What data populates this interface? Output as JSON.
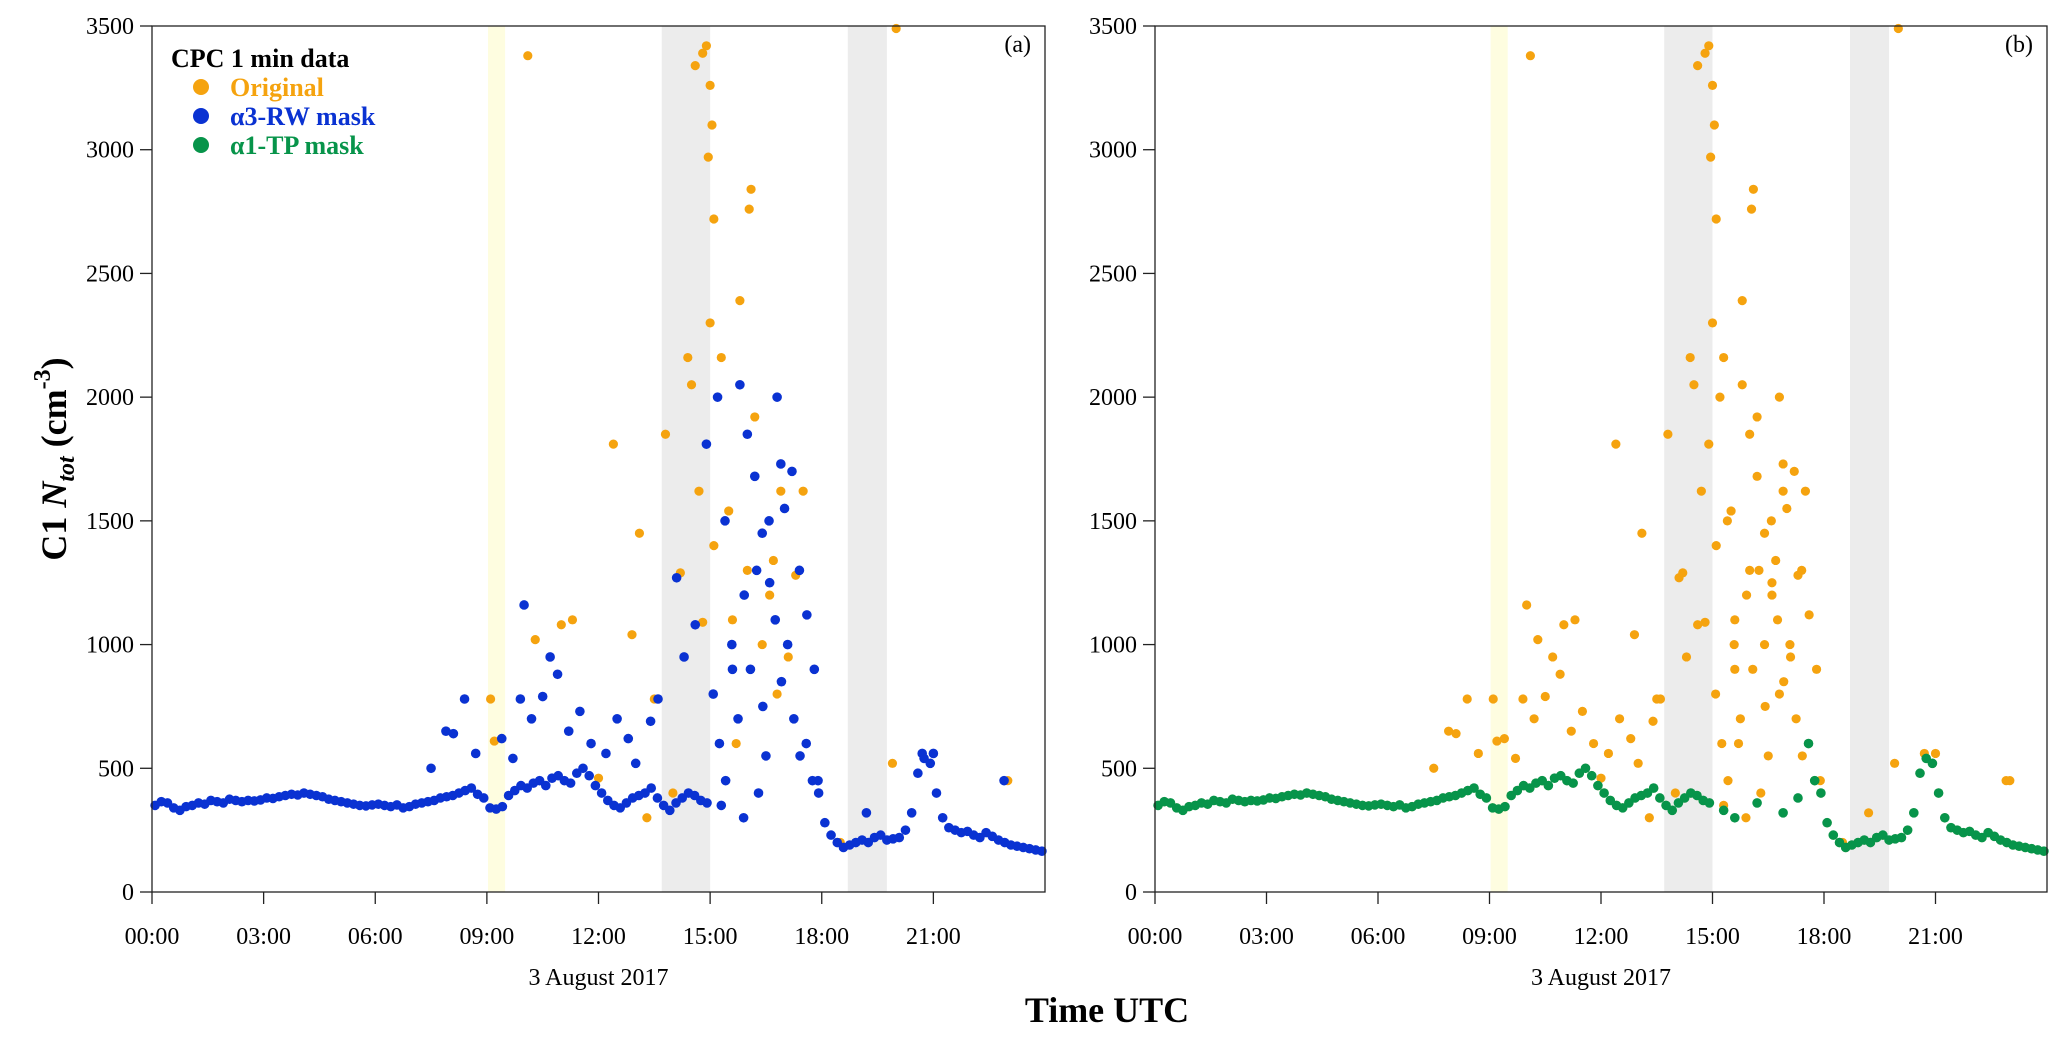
{
  "chart_data": {
    "type": "scatter",
    "xlabel": "Time UTC",
    "ylabel_prefix": "C1 ",
    "ylabel_var": "N",
    "ylabel_sub": "tot",
    "ylabel_unit": " (cm",
    "ylabel_exp": "-3",
    "ylabel_close": ")",
    "date_label": "3 August 2017",
    "ylim": [
      0,
      3500
    ],
    "yticks": [
      0,
      500,
      1000,
      1500,
      2000,
      2500,
      3000,
      3500
    ],
    "xlim_hours": [
      0,
      24
    ],
    "xticks_hours": [
      0,
      3,
      6,
      9,
      12,
      15,
      18,
      21
    ],
    "xtick_labels": [
      "00:00",
      "03:00",
      "06:00",
      "09:00",
      "12:00",
      "15:00",
      "18:00",
      "21:00"
    ],
    "legend": {
      "title": "CPC 1 min data",
      "entries": [
        {
          "label": "Original",
          "color": "#f5a30f"
        },
        {
          "label": "α3-RW mask",
          "color": "#0a32d2"
        },
        {
          "label": "α1-TP mask",
          "color": "#07944a"
        }
      ]
    },
    "panels": [
      {
        "label": "(a)",
        "series": [
          "Original",
          "α3-RW mask"
        ]
      },
      {
        "label": "(b)",
        "series": [
          "Original",
          "α1-TP mask"
        ]
      }
    ],
    "shaded_intervals_hours": [
      {
        "start": 9.03,
        "end": 9.49,
        "color": "#fefde0"
      },
      {
        "start": 13.7,
        "end": 15.0,
        "color": "#ececec"
      },
      {
        "start": 18.7,
        "end": 19.75,
        "color": "#ececec"
      }
    ],
    "baseline_step_minutes": 10,
    "baseline_values": [
      350,
      365,
      360,
      340,
      330,
      345,
      350,
      360,
      355,
      370,
      365,
      360,
      375,
      370,
      365,
      370,
      368,
      372,
      380,
      378,
      385,
      390,
      395,
      392,
      400,
      395,
      390,
      385,
      375,
      370,
      365,
      360,
      355,
      350,
      348,
      352,
      355,
      350,
      345,
      352,
      340,
      345,
      355,
      360,
      365,
      370,
      380,
      385,
      390,
      400,
      410,
      420,
      395,
      380,
      340,
      335,
      345,
      390,
      410,
      430,
      420,
      440,
      450,
      430,
      460,
      470,
      450,
      440,
      480,
      500,
      470,
      430,
      400,
      370,
      350,
      340,
      360,
      380,
      390,
      400,
      420,
      380,
      350,
      330,
      360,
      380,
      400,
      390,
      370,
      360,
      800,
      600,
      450,
      1000,
      700,
      1200,
      900,
      1300,
      750,
      1500,
      1100,
      850,
      1000,
      700,
      550,
      600,
      450,
      400,
      280,
      230,
      200,
      180,
      190,
      200,
      210,
      200,
      220,
      230,
      210,
      215,
      220,
      250,
      320,
      480,
      540,
      520,
      400,
      300,
      260,
      250,
      240,
      245,
      230,
      220,
      240,
      225,
      210,
      200,
      190,
      185,
      180,
      175,
      170,
      165
    ],
    "tp_mask_excluded_hours": [
      15.0,
      17.5
    ],
    "tp_mask_extra_points": [
      [
        15.3,
        330
      ],
      [
        15.6,
        300
      ],
      [
        16.2,
        360
      ],
      [
        16.9,
        320
      ],
      [
        17.3,
        380
      ]
    ],
    "rw_mask_extra_points": [
      [
        7.5,
        500
      ],
      [
        7.9,
        650
      ],
      [
        8.1,
        640
      ],
      [
        8.4,
        780
      ],
      [
        8.7,
        560
      ],
      [
        9.4,
        620
      ],
      [
        9.7,
        540
      ],
      [
        9.9,
        780
      ],
      [
        10.0,
        1160
      ],
      [
        10.2,
        700
      ],
      [
        10.5,
        790
      ],
      [
        10.7,
        950
      ],
      [
        10.9,
        880
      ],
      [
        11.2,
        650
      ],
      [
        11.5,
        730
      ],
      [
        11.8,
        600
      ],
      [
        12.2,
        560
      ],
      [
        12.5,
        700
      ],
      [
        12.8,
        620
      ],
      [
        13.0,
        520
      ],
      [
        13.4,
        690
      ],
      [
        13.6,
        780
      ],
      [
        14.1,
        1270
      ],
      [
        14.3,
        950
      ],
      [
        14.6,
        1080
      ],
      [
        14.9,
        1810
      ],
      [
        15.2,
        2000
      ],
      [
        15.4,
        1500
      ],
      [
        15.6,
        900
      ],
      [
        15.8,
        2050
      ],
      [
        16.0,
        1850
      ],
      [
        16.2,
        1680
      ],
      [
        16.4,
        1450
      ],
      [
        16.6,
        1250
      ],
      [
        16.8,
        2000
      ],
      [
        16.9,
        1730
      ],
      [
        17.0,
        1550
      ],
      [
        17.2,
        1700
      ],
      [
        17.4,
        1300
      ],
      [
        17.6,
        1120
      ],
      [
        17.8,
        900
      ],
      [
        16.3,
        400
      ],
      [
        16.5,
        550
      ],
      [
        15.9,
        300
      ],
      [
        15.3,
        350
      ],
      [
        17.9,
        450
      ],
      [
        22.9,
        450
      ],
      [
        19.2,
        320
      ],
      [
        20.7,
        560
      ],
      [
        21.0,
        560
      ]
    ],
    "original_extra_points": [
      [
        9.1,
        780
      ],
      [
        9.2,
        610
      ],
      [
        10.1,
        3380
      ],
      [
        10.3,
        1020
      ],
      [
        11.0,
        1080
      ],
      [
        11.3,
        1100
      ],
      [
        12.4,
        1810
      ],
      [
        12.9,
        1040
      ],
      [
        13.1,
        1450
      ],
      [
        13.5,
        780
      ],
      [
        13.8,
        1850
      ],
      [
        14.2,
        1290
      ],
      [
        14.4,
        2160
      ],
      [
        14.5,
        2050
      ],
      [
        14.7,
        1620
      ],
      [
        14.6,
        3340
      ],
      [
        14.8,
        3390
      ],
      [
        14.9,
        3420
      ],
      [
        15.0,
        3260
      ],
      [
        15.05,
        3100
      ],
      [
        14.95,
        2970
      ],
      [
        15.1,
        2720
      ],
      [
        15.0,
        2300
      ],
      [
        15.3,
        2160
      ],
      [
        15.5,
        1540
      ],
      [
        15.8,
        2390
      ],
      [
        16.1,
        2840
      ],
      [
        16.05,
        2760
      ],
      [
        16.2,
        1920
      ],
      [
        15.1,
        1400
      ],
      [
        14.8,
        1090
      ],
      [
        15.6,
        1100
      ],
      [
        16.9,
        1620
      ],
      [
        17.5,
        1620
      ],
      [
        16.7,
        1340
      ],
      [
        17.3,
        1280
      ],
      [
        16.6,
        1200
      ],
      [
        20.0,
        3490
      ],
      [
        19.9,
        520
      ],
      [
        23.0,
        450
      ],
      [
        18.5,
        200
      ],
      [
        12.0,
        460
      ],
      [
        13.3,
        300
      ],
      [
        14.0,
        400
      ],
      [
        16.4,
        1000
      ],
      [
        16.8,
        800
      ],
      [
        17.1,
        950
      ],
      [
        15.7,
        600
      ],
      [
        16.0,
        1300
      ]
    ]
  }
}
